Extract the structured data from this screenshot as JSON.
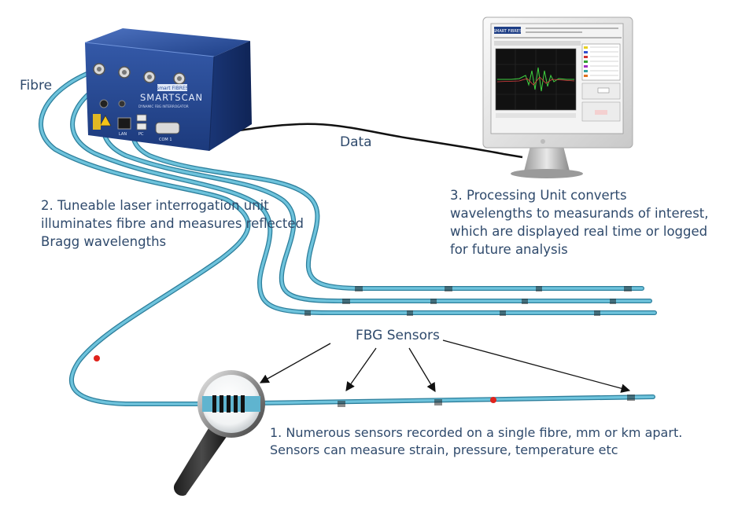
{
  "labels": {
    "fibre": "Fibre",
    "data": "Data",
    "laser_unit": [
      "2. Tuneable laser interrogation unit",
      "illuminates fibre and measures reflected",
      "Bragg wavelengths"
    ],
    "processing_unit": [
      "3. Processing Unit converts",
      "wavelengths to measurands of interest,",
      "which are displayed real time or logged",
      "for future analysis"
    ],
    "fbg_sensors": "FBG Sensors",
    "sensors_note": [
      "1. Numerous sensors recorded on a single fibre, mm or km apart.",
      "Sensors can measure strain, pressure, temperature etc"
    ]
  },
  "device": {
    "brand": "SMARTSCAN",
    "subtitle": "DYNAMIC FBG INTERROGATOR",
    "badge": "Smart FIBRES",
    "port_labels": [
      "LAN",
      "PC",
      "COM 1"
    ]
  },
  "monitor": {
    "logo": "SMART FIBRES"
  },
  "colors": {
    "text": "#2f4a6c",
    "fibre": "#5fb4cf",
    "fibre_outline": "#2d7f9c",
    "device_blue": "#2a4f9b",
    "marker_red": "#e0231c",
    "signal_green": "#40d040"
  }
}
